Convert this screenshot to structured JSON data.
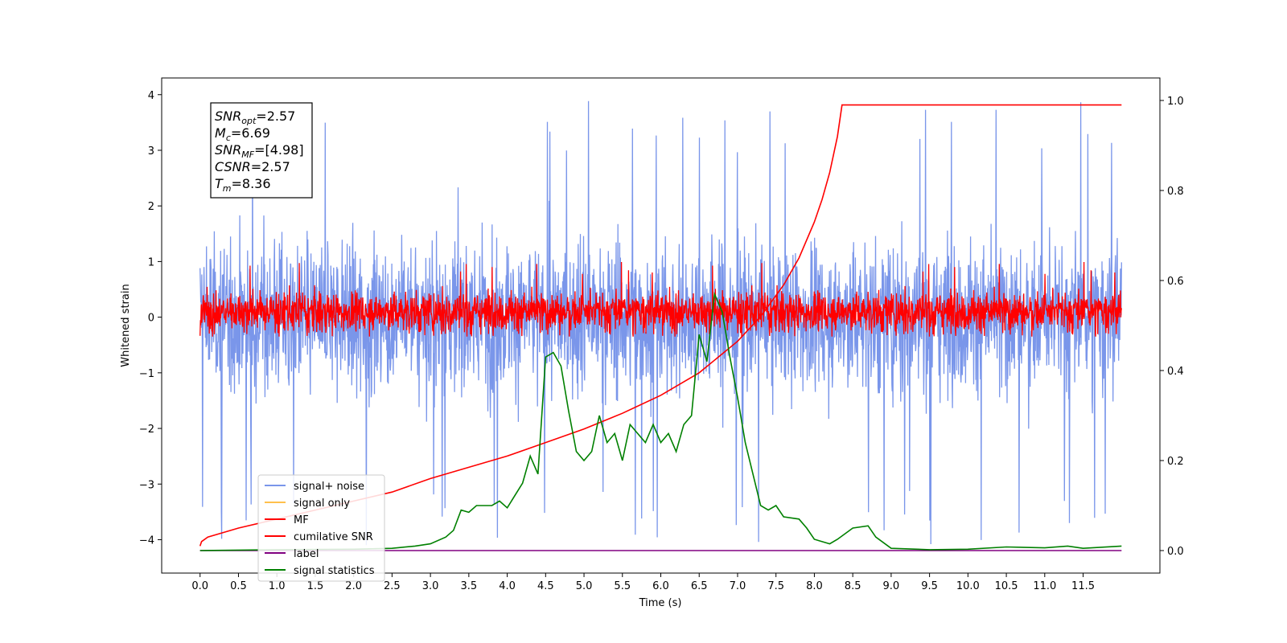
{
  "chart_data": {
    "type": "line",
    "title": "",
    "xlabel": "Time (s)",
    "ylabel": "Whitened strain",
    "xlim": [
      -0.5,
      12.5
    ],
    "ylim": [
      -4.6,
      4.3
    ],
    "y2lim": [
      -0.05,
      1.05
    ],
    "xticks": [
      "0.0",
      "0.5",
      "1.0",
      "1.5",
      "2.0",
      "2.5",
      "3.0",
      "3.5",
      "4.0",
      "4.5",
      "5.0",
      "5.5",
      "6.0",
      "6.5",
      "7.0",
      "7.5",
      "8.0",
      "8.5",
      "9.0",
      "9.5",
      "10.0",
      "10.5",
      "11.0",
      "11.5"
    ],
    "yticks": [
      "4",
      "3",
      "2",
      "1",
      "0",
      "−1",
      "−2",
      "−3",
      "−4"
    ],
    "y2ticks": [
      "1.0",
      "0.8",
      "0.6",
      "0.4",
      "0.2",
      "0.0"
    ],
    "grid": false,
    "legend_position": "lower-left",
    "legend": [
      {
        "label": "signal+ noise",
        "color": "#4169e1",
        "alpha": 0.7
      },
      {
        "label": "signal only",
        "color": "#ffa500",
        "alpha": 0.7
      },
      {
        "label": "MF",
        "color": "#ff0000",
        "alpha": 1
      },
      {
        "label": "cumilative SNR",
        "color": "#ff0000",
        "alpha": 1
      },
      {
        "label": "label",
        "color": "#800080",
        "alpha": 1
      },
      {
        "label": "signal statistics",
        "color": "#008000",
        "alpha": 1
      }
    ],
    "annotation": {
      "lines": [
        {
          "sym": "SNR",
          "sub": "opt",
          "value": "=2.57"
        },
        {
          "sym": "M",
          "sub": "c",
          "value": "=6.69"
        },
        {
          "sym": "SNR",
          "sub": "MF",
          "value": "=[4.98]"
        },
        {
          "sym": "CSNR",
          "sub": "",
          "value": "=2.57"
        },
        {
          "sym": "T",
          "sub": "m",
          "value": "=8.36"
        }
      ]
    },
    "series": [
      {
        "name": "signal+ noise",
        "axis": "left",
        "style": "dense-noise",
        "color": "#4169e1",
        "x_range": [
          0.0,
          12.0
        ],
        "center": 0.0,
        "band": [
          -1.5,
          1.5
        ],
        "peak_range": [
          -4.15,
          3.9
        ]
      },
      {
        "name": "MF",
        "axis": "left",
        "style": "dense-noise",
        "color": "#ff0000",
        "x_range": [
          0.0,
          12.0
        ],
        "center": 0.0,
        "band": [
          -0.3,
          0.5
        ],
        "peak_range": [
          -0.35,
          1.0
        ]
      },
      {
        "name": "cumilative SNR",
        "axis": "right",
        "color": "#ff0000",
        "x": [
          0.0,
          0.02,
          0.1,
          0.3,
          0.5,
          1.0,
          1.5,
          2.0,
          2.5,
          3.0,
          3.5,
          4.0,
          4.5,
          5.0,
          5.5,
          6.0,
          6.5,
          7.0,
          7.3,
          7.6,
          7.8,
          8.0,
          8.1,
          8.2,
          8.3,
          8.36,
          12.0
        ],
        "y": [
          0.01,
          0.02,
          0.03,
          0.04,
          0.05,
          0.07,
          0.09,
          0.11,
          0.13,
          0.16,
          0.185,
          0.21,
          0.24,
          0.27,
          0.305,
          0.345,
          0.395,
          0.465,
          0.52,
          0.59,
          0.65,
          0.73,
          0.78,
          0.84,
          0.92,
          0.99,
          0.99
        ]
      },
      {
        "name": "label",
        "axis": "right",
        "color": "#800080",
        "x": [
          0.0,
          12.0
        ],
        "y": [
          0.0,
          0.0
        ]
      },
      {
        "name": "signal statistics",
        "axis": "right",
        "color": "#008000",
        "x": [
          0.0,
          1.0,
          2.0,
          2.5,
          2.8,
          3.0,
          3.2,
          3.3,
          3.4,
          3.5,
          3.6,
          3.8,
          3.9,
          4.0,
          4.2,
          4.3,
          4.4,
          4.5,
          4.6,
          4.7,
          4.8,
          4.9,
          5.0,
          5.1,
          5.2,
          5.3,
          5.4,
          5.5,
          5.6,
          5.8,
          5.9,
          6.0,
          6.1,
          6.2,
          6.3,
          6.4,
          6.5,
          6.6,
          6.7,
          6.8,
          6.9,
          7.0,
          7.1,
          7.3,
          7.4,
          7.5,
          7.6,
          7.8,
          7.9,
          8.0,
          8.2,
          8.3,
          8.5,
          8.7,
          8.8,
          9.0,
          9.5,
          10.0,
          10.5,
          11.0,
          11.3,
          11.5,
          12.0
        ],
        "y": [
          0.0,
          0.002,
          0.003,
          0.005,
          0.01,
          0.015,
          0.03,
          0.045,
          0.09,
          0.085,
          0.1,
          0.1,
          0.11,
          0.095,
          0.15,
          0.21,
          0.17,
          0.43,
          0.44,
          0.41,
          0.31,
          0.22,
          0.2,
          0.22,
          0.3,
          0.24,
          0.26,
          0.2,
          0.28,
          0.24,
          0.28,
          0.24,
          0.26,
          0.22,
          0.28,
          0.3,
          0.48,
          0.42,
          0.57,
          0.53,
          0.43,
          0.34,
          0.24,
          0.1,
          0.09,
          0.1,
          0.075,
          0.07,
          0.05,
          0.025,
          0.015,
          0.025,
          0.05,
          0.055,
          0.03,
          0.005,
          0.002,
          0.003,
          0.008,
          0.006,
          0.01,
          0.005,
          0.01
        ]
      }
    ]
  }
}
